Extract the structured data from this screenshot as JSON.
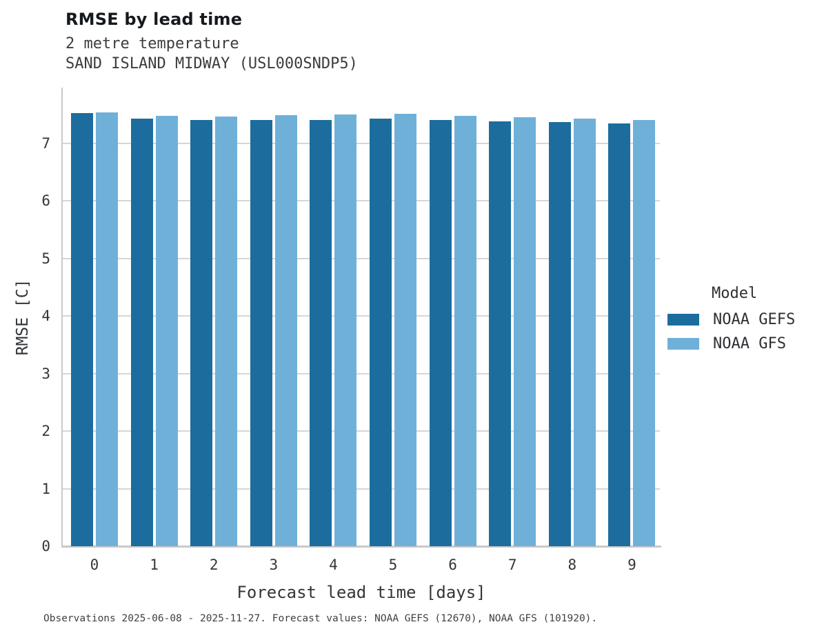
{
  "header": {
    "title": "RMSE by lead time",
    "subtitle_line1": "2 metre temperature",
    "subtitle_line2": "SAND ISLAND MIDWAY (USL000SNDP5)"
  },
  "legend": {
    "title": "Model",
    "items": [
      {
        "label": "NOAA GEFS",
        "color": "#1c6d9e"
      },
      {
        "label": "NOAA GFS",
        "color": "#6fb0d9"
      }
    ]
  },
  "caption": "Observations 2025-06-08 - 2025-11-27. Forecast values: NOAA GEFS (12670), NOAA GFS (101920).",
  "chart_data": {
    "type": "bar",
    "title": "RMSE by lead time",
    "subtitle": [
      "2 metre temperature",
      "SAND ISLAND MIDWAY (USL000SNDP5)"
    ],
    "categories": [
      "0",
      "1",
      "2",
      "3",
      "4",
      "5",
      "6",
      "7",
      "8",
      "9"
    ],
    "series": [
      {
        "name": "NOAA GEFS",
        "color": "#1c6d9e",
        "values": [
          7.53,
          7.43,
          7.41,
          7.41,
          7.41,
          7.43,
          7.41,
          7.38,
          7.37,
          7.35
        ]
      },
      {
        "name": "NOAA GFS",
        "color": "#6fb0d9",
        "values": [
          7.54,
          7.48,
          7.47,
          7.49,
          7.5,
          7.51,
          7.48,
          7.45,
          7.43,
          7.41
        ]
      }
    ],
    "xlabel": "Forecast lead time [days]",
    "ylabel": "RMSE [C]",
    "ylim": [
      0,
      7.97
    ],
    "yticks": [
      0,
      1,
      2,
      3,
      4,
      5,
      6,
      7
    ],
    "grid": true,
    "legend_title": "Model",
    "legend_position": "right"
  }
}
